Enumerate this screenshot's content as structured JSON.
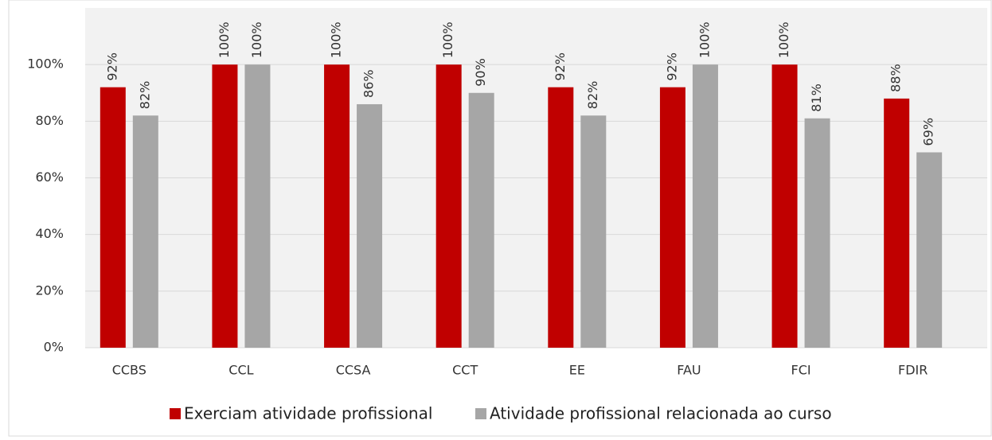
{
  "chart_data": {
    "type": "bar",
    "categories": [
      "CCBS",
      "CCL",
      "CCSA",
      "CCT",
      "EE",
      "FAU",
      "FCI",
      "FDIR"
    ],
    "series": [
      {
        "name": "Exerciam atividade profissional",
        "color": "#c00000",
        "values": [
          92,
          100,
          100,
          100,
          92,
          92,
          100,
          88
        ],
        "value_labels": [
          "92%",
          "100%",
          "100%",
          "100%",
          "92%",
          "92%",
          "100%",
          "88%"
        ]
      },
      {
        "name": "Atividade profissional relacionada ao curso",
        "color": "#a6a6a6",
        "values": [
          82,
          100,
          86,
          90,
          82,
          100,
          81,
          69
        ],
        "value_labels": [
          "82%",
          "100%",
          "86%",
          "90%",
          "82%",
          "100%",
          "81%",
          "69%"
        ]
      }
    ],
    "ylim": [
      0,
      120
    ],
    "yticks": [
      {
        "value": 0,
        "label": "0%"
      },
      {
        "value": 20,
        "label": "20%"
      },
      {
        "value": 40,
        "label": "40%"
      },
      {
        "value": 60,
        "label": "60%"
      },
      {
        "value": 80,
        "label": "80%"
      },
      {
        "value": 100,
        "label": "100%"
      }
    ],
    "grid": true,
    "legend": "bottom"
  }
}
